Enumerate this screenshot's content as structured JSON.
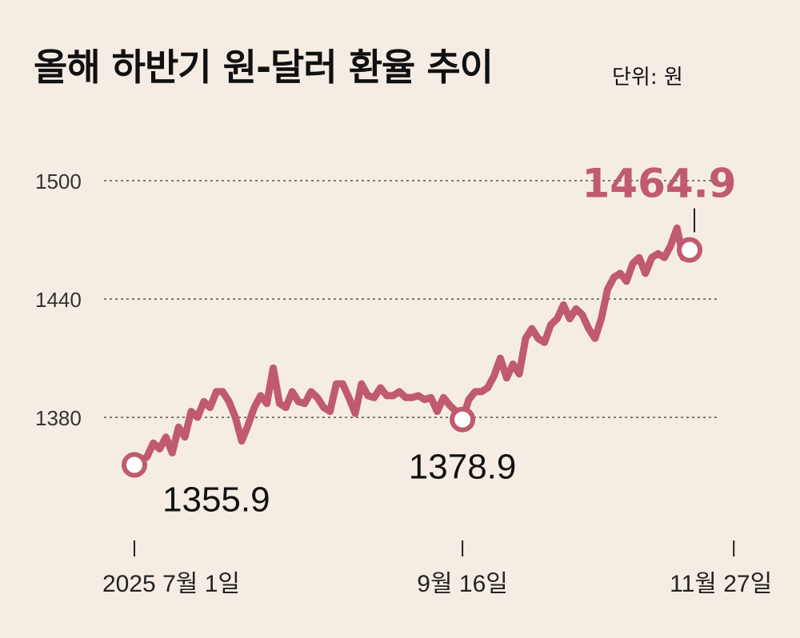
{
  "chart_data": {
    "type": "line",
    "title": "올해 하반기 원-달러 환율 추이",
    "unit_label": "단위: 원",
    "ylim": [
      1345,
      1510
    ],
    "yticks": [
      {
        "value": 1500,
        "label": "1500"
      },
      {
        "value": 1440,
        "label": "1440"
      },
      {
        "value": 1380,
        "label": "1380"
      }
    ],
    "grid": "horizontal-dashed",
    "xticks": [
      {
        "index": 0,
        "label": "2025 7월 1일"
      },
      {
        "index": 52,
        "label": "9월 16일"
      },
      {
        "index": 95,
        "label": "11월 27일"
      }
    ],
    "series": [
      {
        "color": "#c05a6e",
        "values": [
          1355.9,
          1358,
          1360,
          1367,
          1364,
          1370,
          1362,
          1375,
          1370,
          1383,
          1380,
          1388,
          1385,
          1393,
          1393,
          1388,
          1380,
          1368,
          1376,
          1385,
          1391,
          1387,
          1405,
          1387,
          1385,
          1393,
          1388,
          1387,
          1393,
          1390,
          1385,
          1383,
          1397,
          1397,
          1390,
          1382,
          1397,
          1391,
          1390,
          1395,
          1391,
          1391,
          1393,
          1390,
          1390,
          1391,
          1389,
          1390,
          1383,
          1390,
          1386,
          1383,
          1378.9,
          1389,
          1393,
          1393,
          1395,
          1401,
          1410,
          1400,
          1407,
          1402,
          1420,
          1425,
          1420,
          1418,
          1427,
          1430,
          1437,
          1430,
          1435,
          1432,
          1425,
          1420,
          1430,
          1445,
          1451,
          1453,
          1449,
          1458,
          1461,
          1453,
          1461,
          1463,
          1461,
          1467,
          1476,
          1461,
          1464.9
        ],
        "labels": [
          {
            "index": 0,
            "text": "1355.9"
          },
          {
            "index": 52,
            "text": "1378.9"
          },
          {
            "index": 88,
            "text": "1464.9"
          }
        ]
      }
    ]
  }
}
